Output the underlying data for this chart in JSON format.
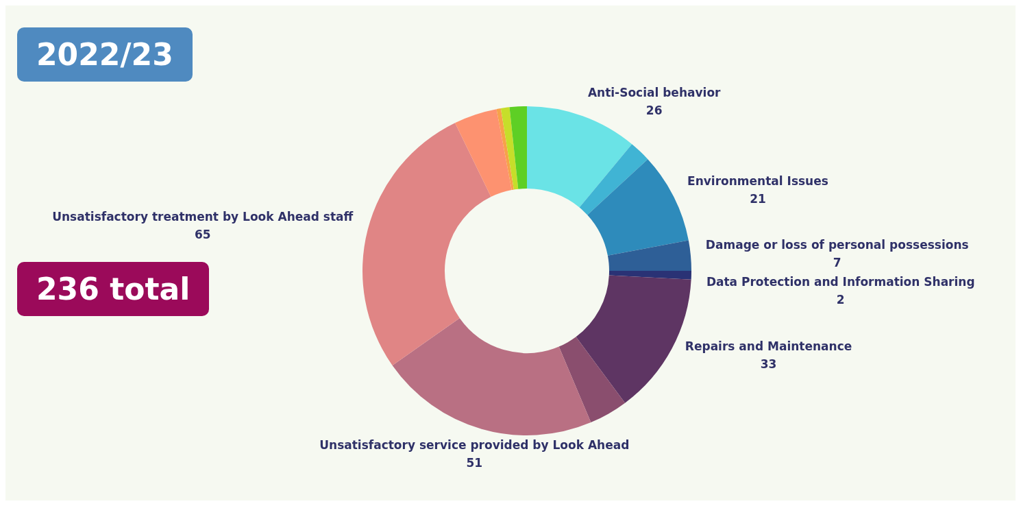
{
  "chart_data": {
    "type": "donut",
    "title": "2022/23",
    "annotations": [
      "236 total"
    ],
    "categories": [
      "Anti-Social behavior",
      null,
      "Environmental Issues",
      "Damage or loss of personal possessions",
      "Data Protection and Information Sharing",
      "Repairs and Maintenance",
      null,
      "Unsatisfactory service provided by Look Ahead",
      "Unsatisfactory treatment by Look Ahead staff",
      null,
      null,
      null,
      null
    ],
    "values": [
      26,
      5,
      21,
      7,
      2,
      33,
      9,
      51,
      65,
      10,
      1,
      2,
      4
    ],
    "value_labels": [
      "26",
      null,
      "21",
      "7",
      "2",
      "33",
      null,
      "51",
      "65",
      null,
      null,
      null,
      null
    ],
    "colors": [
      "#6ae3e6",
      "#40b4d4",
      "#2e8bbb",
      "#2e5f97",
      "#2a3275",
      "#5e3563",
      "#8a4e6e",
      "#b97083",
      "#e08585",
      "#fd9270",
      "#f7a24a",
      "#c6de2a",
      "#5ecf25"
    ],
    "legend": false
  }
}
